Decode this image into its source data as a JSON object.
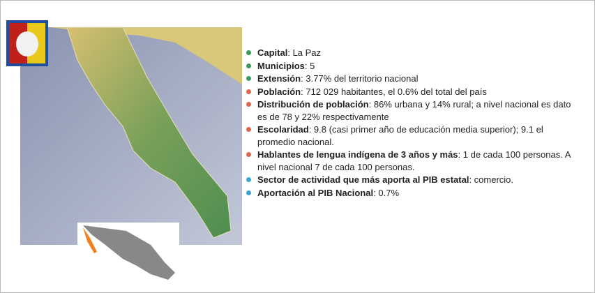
{
  "items": [
    {
      "label": "Capital",
      "text": ": La Paz",
      "color": "#3a9a5a"
    },
    {
      "label": "Municipios",
      "text": ": 5",
      "color": "#3a9a5a"
    },
    {
      "label": "Extensión",
      "text": ": 3.77% del territorio nacional",
      "color": "#3a9a5a"
    },
    {
      "label": "Población",
      "text": ": 712 029 habitantes, el 0.6% del total del país",
      "color": "#e0664a"
    },
    {
      "label": "Distribución de población",
      "text": ": 86% urbana y 14% rural; a nivel nacional es dato es de 78 y 22% respectivamente",
      "color": "#e0664a"
    },
    {
      "label": "Escolaridad",
      "text": ": 9.8 (casi primer año de educación media superior); 9.1 el promedio nacional.",
      "color": "#e0664a"
    },
    {
      "label": "Hablantes de lengua indígena de 3 años y más",
      "text": ": 1 de cada 100 personas. A nivel nacional 7 de cada 100 personas.",
      "color": "#e0664a"
    },
    {
      "label": "Sector de actividad que más aporta al PIB estatal",
      "text": ": comercio.",
      "color": "#3aa6d8"
    },
    {
      "label": "Aportación al PIB Nacional",
      "text": ": 0.7%",
      "color": "#3aa6d8"
    }
  ]
}
